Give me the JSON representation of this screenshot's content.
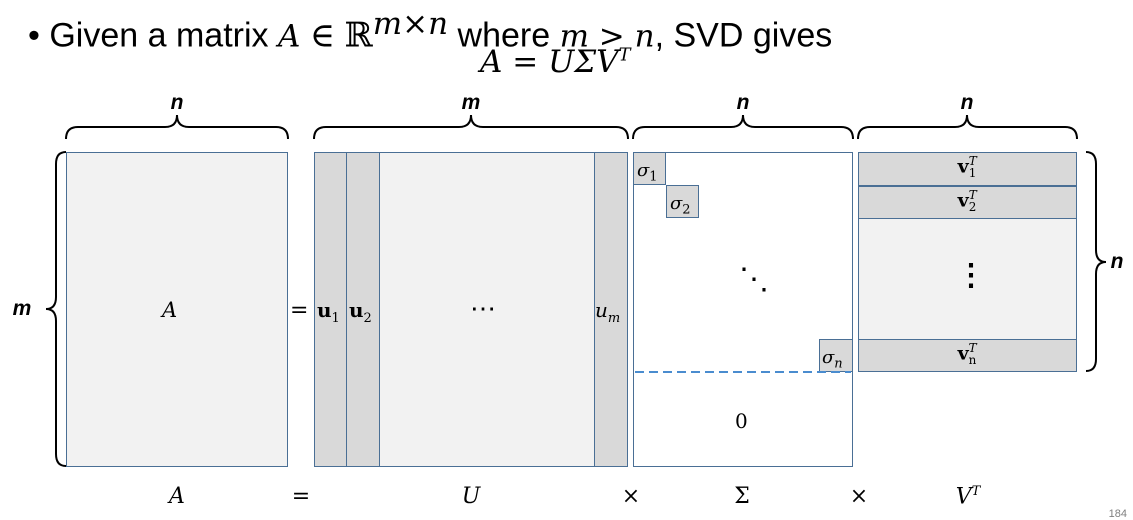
{
  "title": {
    "bullet": "•",
    "text_1": "Given a matrix ",
    "var_A": "A",
    "in_symbol": "∈",
    "reals": "ℝ",
    "exponent": "m×n",
    "text_2": " where ",
    "condition": "m > n",
    "text_3": ", SVD gives"
  },
  "equation": {
    "lhs": "A",
    "eq": "=",
    "rhs": "UΣV",
    "sup": "T"
  },
  "dimensions": {
    "top_a": "n",
    "top_u": "m",
    "top_sigma": "n",
    "top_vt": "n",
    "left": "m",
    "right": "n"
  },
  "matrix_a": {
    "label": "A"
  },
  "equals_symbol": "=",
  "matrix_u": {
    "col1": {
      "base": "u",
      "sub": "1"
    },
    "col2": {
      "base": "u",
      "sub": "2"
    },
    "ellipsis": "⋯",
    "col_last": {
      "base": "u",
      "sub": "m"
    }
  },
  "matrix_sigma": {
    "s1": {
      "base": "σ",
      "sub": "1"
    },
    "s2": {
      "base": "σ",
      "sub": "2"
    },
    "ddots": "⋱",
    "sn": {
      "base": "σ",
      "sub": "n"
    },
    "zero_block": "0"
  },
  "matrix_vt": {
    "row1": {
      "base": "v",
      "sup": "T",
      "sub": "1"
    },
    "row2": {
      "base": "v",
      "sup": "T",
      "sub": "2"
    },
    "vdots": "⋮",
    "row_last": {
      "base": "v",
      "sup": "T",
      "sub": "n"
    }
  },
  "bottom_labels": {
    "a": "A",
    "eq": "=",
    "u": "U",
    "times1": "×",
    "sigma": "Σ",
    "times2": "×",
    "vt_base": "V",
    "vt_sup": "T"
  },
  "page_number": "184"
}
